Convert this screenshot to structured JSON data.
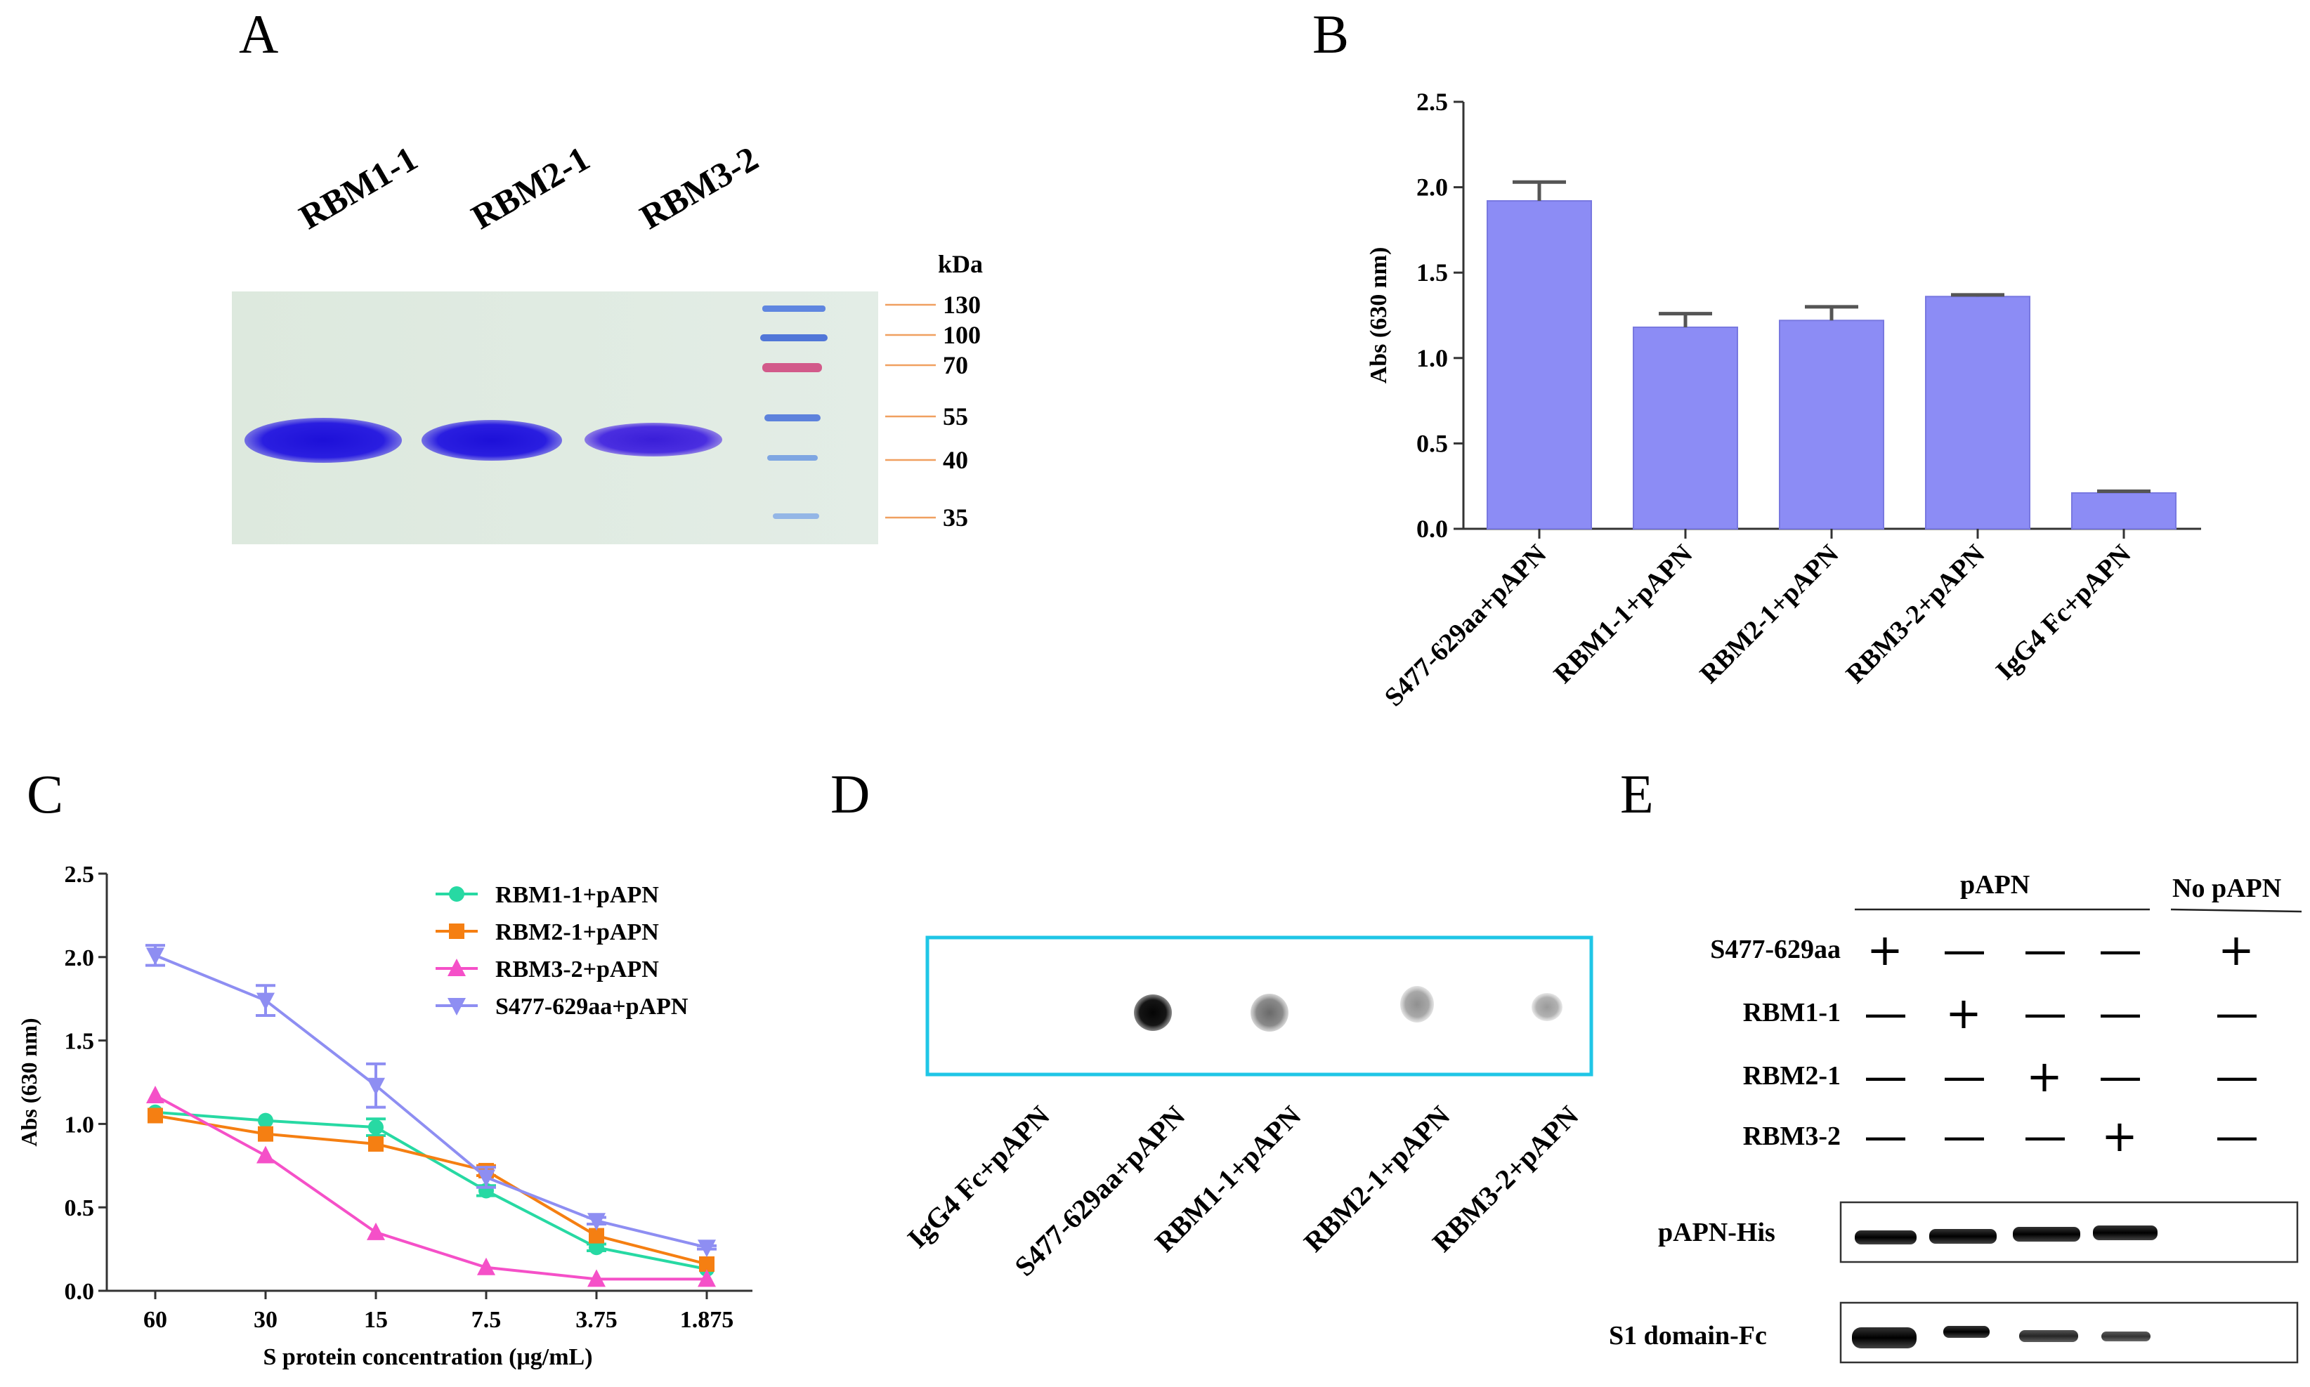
{
  "panels": {
    "a": "A",
    "b": "B",
    "c": "C",
    "d": "D",
    "e": "E"
  },
  "panel_a": {
    "lanes": [
      "RBM1-1",
      "RBM2-1",
      "RBM3-2"
    ],
    "unit": "kDa",
    "ladder": [
      "130",
      "100",
      "70",
      "55",
      "40",
      "35"
    ]
  },
  "panel_d": {
    "spots": [
      "IgG4 Fc+pAPN",
      "S477-629aa+pAPN",
      "RBM1-1+pAPN",
      "RBM2-1+pAPN",
      "RBM3-2+pAPN"
    ]
  },
  "panel_e": {
    "group_pAPN": "pAPN",
    "group_no": "No pAPN",
    "rows": [
      {
        "label": "S477-629aa",
        "signs": [
          "+",
          "—",
          "—",
          "—",
          "+"
        ]
      },
      {
        "label": "RBM1-1",
        "signs": [
          "—",
          "+",
          "—",
          "—",
          "—"
        ]
      },
      {
        "label": "RBM2-1",
        "signs": [
          "—",
          "—",
          "+",
          "—",
          "—"
        ]
      },
      {
        "label": "RBM3-2",
        "signs": [
          "—",
          "—",
          "—",
          "+",
          "—"
        ]
      }
    ],
    "blot_labels": [
      "pAPN-His",
      "S1 domain-Fc"
    ]
  },
  "chart_data": [
    {
      "panel": "B",
      "type": "bar",
      "categories": [
        "S477-629aa+pAPN",
        "RBM1-1+pAPN",
        "RBM2-1+pAPN",
        "RBM3-2+pAPN",
        "IgG4 Fc+pAPN"
      ],
      "values": [
        1.92,
        1.18,
        1.22,
        1.36,
        0.21
      ],
      "errors": [
        0.11,
        0.08,
        0.08,
        0.01,
        0.01
      ],
      "ylabel": "Abs (630 nm)",
      "ylim": [
        0,
        2.5
      ],
      "yticks": [
        "0.0",
        "0.5",
        "1.0",
        "1.5",
        "2.0",
        "2.5"
      ],
      "color": "#8c8cf5"
    },
    {
      "panel": "C",
      "type": "line",
      "categories": [
        "60",
        "30",
        "15",
        "7.5",
        "3.75",
        "1.875"
      ],
      "xlabel": "S protein concentration (μg/mL)",
      "ylabel": "Abs (630 nm)",
      "ylim": [
        0,
        2.5
      ],
      "yticks": [
        "0.0",
        "0.5",
        "1.0",
        "1.5",
        "2.0",
        "2.5"
      ],
      "series": [
        {
          "name": "RBM1-1+pAPN",
          "color": "#27d9a3",
          "marker": "circle",
          "values": [
            1.07,
            1.02,
            0.98,
            0.6,
            0.26,
            0.13
          ],
          "errors": [
            0,
            0,
            0.05,
            0.03,
            0.02,
            0
          ]
        },
        {
          "name": "RBM2-1+pAPN",
          "color": "#f57f12",
          "marker": "square",
          "values": [
            1.05,
            0.94,
            0.88,
            0.72,
            0.33,
            0.16
          ],
          "errors": [
            0,
            0,
            0,
            0.03,
            0,
            0
          ]
        },
        {
          "name": "RBM3-2+pAPN",
          "color": "#f550c8",
          "marker": "triangle",
          "values": [
            1.17,
            0.81,
            0.35,
            0.14,
            0.07,
            0.07
          ],
          "errors": [
            0,
            0,
            0,
            0,
            0,
            0
          ]
        },
        {
          "name": "S477-629aa+pAPN",
          "color": "#8e8ef2",
          "marker": "triangle-down",
          "values": [
            2.01,
            1.74,
            1.23,
            0.68,
            0.42,
            0.26
          ],
          "errors": [
            0.06,
            0.09,
            0.13,
            0.06,
            0.02,
            0.01
          ]
        }
      ]
    }
  ]
}
